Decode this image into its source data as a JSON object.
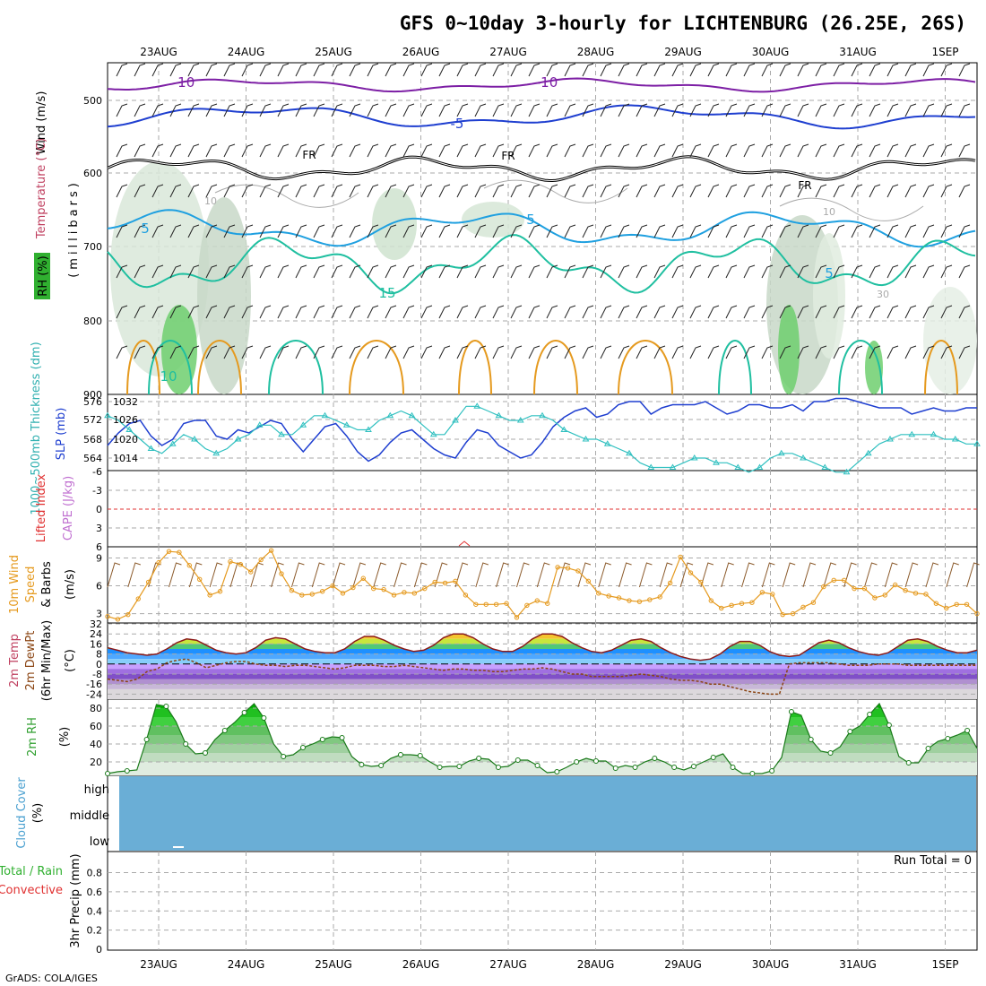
{
  "title": "GFS 0~10day 3-hourly for LICHTENBURG (26.25E, 26S)",
  "footer": "GrADS: COLA/IGES",
  "dates": [
    "23AUG",
    "24AUG",
    "25AUG",
    "26AUG",
    "27AUG",
    "28AUG",
    "29AUG",
    "30AUG",
    "31AUG",
    "1SEP"
  ],
  "colors": {
    "purple": "#7d1fa5",
    "blue": "#1f3fd0",
    "lightblue": "#1fa0e0",
    "teal": "#1fbfa0",
    "orange": "#e59a1f",
    "red": "#e03030",
    "cyan": "#30c0c0",
    "green": "#30b030",
    "cloud": "#6aaed6"
  },
  "panels": {
    "upper": {
      "ylabel_wind": "Wind (m/s)",
      "ylabel_temp": "Temperature (°C)",
      "ylabel_rh": "RH (%)",
      "ylabel_mb": "(millibars)",
      "yticks": [
        "500",
        "600",
        "700",
        "800",
        "900"
      ],
      "contour_labels": [
        "-10",
        "-10",
        "-5",
        "FR",
        "FR",
        "FR",
        "5",
        "5",
        "5",
        "15",
        "10",
        "10",
        "10",
        "30"
      ]
    },
    "pressure": {
      "ylabel_thick": "1000~500mb Thickness (dm)",
      "ylabel_slp": "SLP (mb)",
      "left_ticks": [
        "576",
        "572",
        "568",
        "564"
      ],
      "right_ticks": [
        "1032",
        "1026",
        "1020",
        "1014"
      ]
    },
    "cape": {
      "ylabel_li": "Lifted Index",
      "ylabel_cape": "CAPE (J/kg)",
      "yticks": [
        "-6",
        "-3",
        "0",
        "3",
        "6"
      ]
    },
    "wind10": {
      "ylabel1": "10m Wind",
      "ylabel2": "Speed",
      "ylabel3": "& Barbs",
      "ylabel_unit": "(m/s)",
      "yticks": [
        "9",
        "6",
        "3"
      ]
    },
    "temp2m": {
      "ylabel1": "2m Temp",
      "ylabel2": "2m DewPt",
      "ylabel3": "(6hr Min/Max)",
      "ylabel_unit": "(°C)",
      "yticks": [
        "32",
        "24",
        "16",
        "8",
        "0",
        "-8",
        "-16",
        "-24"
      ]
    },
    "rh2m": {
      "ylabel": "2m RH",
      "ylabel_unit": "(%)",
      "yticks": [
        "80",
        "60",
        "40",
        "20"
      ]
    },
    "cloud": {
      "ylabel": "Cloud Cover",
      "ylabel_unit": "(%)",
      "levels": [
        "high",
        "middle",
        "low"
      ]
    },
    "precip": {
      "ylabel_total": "Total / Rain",
      "ylabel_conv": "Convective",
      "ylabel_precip": "3hr Precip (mm)",
      "run_total": "Run Total = 0",
      "yticks": [
        "0.8",
        "0.6",
        "0.4",
        "0.2",
        "0"
      ]
    }
  },
  "chart_data": [
    {
      "type": "line",
      "panel": "pressure",
      "series": [
        {
          "name": "SLP",
          "unit": "mb",
          "values": [
            1018,
            1022,
            1025,
            1026,
            1021,
            1018,
            1020,
            1025,
            1026,
            1026,
            1021,
            1020,
            1023,
            1022,
            1024,
            1026,
            1025,
            1020,
            1016,
            1020,
            1024,
            1025,
            1021,
            1016,
            1013,
            1015,
            1019,
            1022,
            1023,
            1020,
            1017,
            1015,
            1014,
            1019,
            1023,
            1022,
            1018,
            1016,
            1014,
            1015,
            1019,
            1024,
            1027,
            1029,
            1030,
            1027,
            1028,
            1031,
            1032,
            1032,
            1028,
            1030,
            1031,
            1031,
            1031,
            1032,
            1030,
            1028,
            1029,
            1031,
            1031,
            1030,
            1030,
            1031,
            1029,
            1032,
            1032,
            1033,
            1033,
            1032,
            1031,
            1030,
            1030,
            1030,
            1028,
            1029,
            1030,
            1029,
            1029,
            1030,
            1030
          ]
        },
        {
          "name": "1000~500mb Thickness",
          "unit": "dm",
          "values": [
            573,
            572,
            570,
            568,
            566,
            565,
            567,
            569,
            568,
            566,
            565,
            566,
            568,
            569,
            571,
            571,
            569,
            569,
            571,
            573,
            573,
            572,
            571,
            570,
            570,
            572,
            573,
            574,
            573,
            571,
            569,
            569,
            572,
            575,
            575,
            574,
            573,
            572,
            572,
            573,
            573,
            572,
            570,
            569,
            568,
            568,
            567,
            566,
            565,
            563,
            562,
            562,
            562,
            563,
            564,
            564,
            563,
            563,
            562,
            561,
            562,
            564,
            565,
            565,
            564,
            563,
            562,
            561,
            561,
            563,
            565,
            567,
            568,
            569,
            569,
            569,
            569,
            568,
            568,
            567,
            567
          ]
        }
      ]
    },
    {
      "type": "line",
      "panel": "wind10",
      "title": "10m Wind Speed",
      "ylim": [
        2,
        10
      ],
      "series": [
        {
          "name": "Speed",
          "unit": "m/s",
          "values": [
            2.7,
            2.4,
            2.9,
            4.6,
            6.4,
            8.5,
            9.7,
            9.6,
            8.2,
            6.7,
            5.0,
            5.4,
            8.6,
            8.3,
            7.5,
            8.8,
            9.8,
            7.3,
            5.5,
            5.0,
            5.1,
            5.4,
            6.0,
            5.2,
            5.8,
            6.8,
            5.7,
            5.6,
            5.0,
            5.3,
            5.2,
            5.7,
            6.4,
            6.3,
            6.5,
            5.0,
            4.0,
            4.0,
            4.0,
            4.1,
            2.6,
            3.9,
            4.4,
            4.1,
            8.0,
            7.9,
            7.6,
            6.5,
            5.2,
            4.9,
            4.7,
            4.4,
            4.3,
            4.5,
            4.8,
            6.3,
            9.1,
            7.4,
            6.4,
            4.4,
            3.6,
            3.9,
            4.1,
            4.2,
            5.3,
            5.1,
            2.9,
            3.0,
            3.7,
            4.2,
            5.9,
            6.6,
            6.6,
            5.7,
            5.7,
            4.7,
            5.0,
            6.1,
            5.5,
            5.2,
            5.1,
            4.1,
            3.6,
            4.0,
            4.0,
            3.0
          ]
        }
      ]
    },
    {
      "type": "area",
      "panel": "temp2m",
      "ylim": [
        -28,
        32
      ],
      "series": [
        {
          "name": "2m Temp",
          "unit": "°C",
          "values": [
            13,
            11,
            9,
            8,
            7,
            8,
            12,
            17,
            20,
            19,
            15,
            11,
            9,
            8,
            9,
            13,
            19,
            21,
            20,
            16,
            12,
            10,
            9,
            9,
            12,
            18,
            22,
            22,
            19,
            15,
            12,
            10,
            11,
            15,
            21,
            24,
            24,
            21,
            16,
            12,
            10,
            10,
            14,
            20,
            24,
            24,
            22,
            17,
            13,
            10,
            9,
            11,
            15,
            19,
            20,
            18,
            13,
            9,
            6,
            4,
            3,
            4,
            8,
            14,
            18,
            18,
            15,
            10,
            7,
            6,
            7,
            12,
            17,
            19,
            17,
            13,
            10,
            8,
            7,
            9,
            14,
            19,
            20,
            18,
            14,
            11,
            9,
            9,
            11
          ]
        },
        {
          "name": "2m DewPt",
          "unit": "°C",
          "values": [
            -12,
            -13,
            -14,
            -12,
            -6,
            -4,
            1,
            3,
            4,
            1,
            -3,
            -1,
            1,
            2,
            2,
            0,
            -1,
            -1,
            -2,
            -1,
            -1,
            -2,
            -3,
            -4,
            -3,
            -1,
            -1,
            -1,
            -2,
            -2,
            -1,
            -2,
            -3,
            -4,
            -5,
            -4,
            -4,
            -5,
            -5,
            -6,
            -6,
            -5,
            -4,
            -4,
            -3,
            -4,
            -6,
            -8,
            -8,
            -10,
            -10,
            -10,
            -10,
            -9,
            -8,
            -9,
            -10,
            -12,
            -13,
            -13,
            -14,
            -16,
            -16,
            -18,
            -20,
            -22,
            -23,
            -24,
            -24,
            0,
            1,
            1,
            1,
            1,
            0,
            -1,
            -1,
            -1,
            0,
            0,
            0,
            -1,
            -1,
            -1,
            -1,
            -1,
            -1,
            -1,
            -1
          ]
        }
      ]
    },
    {
      "type": "area",
      "panel": "rh2m",
      "ylim": [
        5,
        88
      ],
      "series": [
        {
          "name": "2m RH",
          "unit": "%",
          "values": [
            7,
            9,
            10,
            11,
            45,
            84,
            82,
            65,
            40,
            29,
            30,
            45,
            55,
            64,
            75,
            85,
            69,
            40,
            26,
            28,
            36,
            40,
            45,
            48,
            47,
            26,
            17,
            15,
            16,
            24,
            28,
            28,
            27,
            20,
            14,
            15,
            15,
            21,
            24,
            23,
            14,
            15,
            22,
            22,
            16,
            8,
            9,
            14,
            20,
            24,
            21,
            21,
            13,
            16,
            14,
            20,
            24,
            20,
            14,
            11,
            15,
            20,
            25,
            29,
            14,
            7,
            7,
            7,
            10,
            25,
            76,
            72,
            45,
            32,
            30,
            37,
            54,
            60,
            73,
            85,
            61,
            26,
            19,
            19,
            35,
            43,
            46,
            50,
            55,
            35
          ]
        }
      ]
    },
    {
      "type": "heatmap",
      "panel": "cloud",
      "levels": [
        "high",
        "middle",
        "low"
      ],
      "value": 0
    },
    {
      "type": "bar",
      "panel": "precip",
      "ylim": [
        0,
        1
      ],
      "values": []
    }
  ]
}
